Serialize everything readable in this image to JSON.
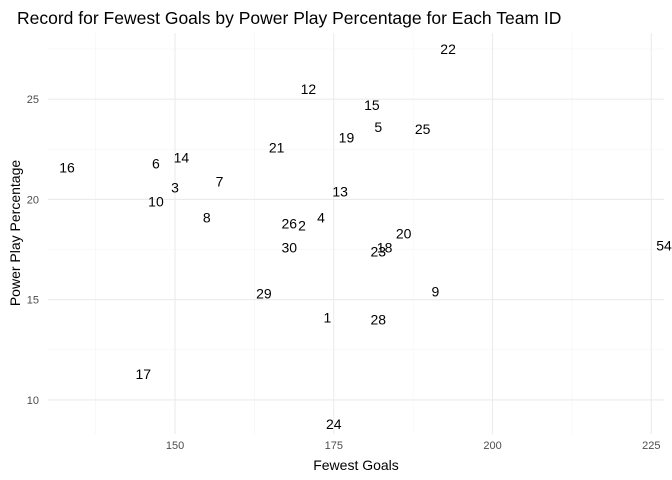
{
  "chart_data": {
    "type": "scatter",
    "title": "Record for Fewest Goals by Power Play Percentage for Each Team ID",
    "xlabel": "Fewest Goals",
    "ylabel": "Power Play Percentage",
    "xlim": [
      130,
      227
    ],
    "ylim": [
      8.3,
      28.3
    ],
    "x_ticks": [
      150,
      175,
      200,
      225
    ],
    "y_ticks": [
      10,
      15,
      20,
      25
    ],
    "x_tick_labels": [
      "150",
      "175",
      "200",
      "225"
    ],
    "y_tick_labels": [
      "10",
      "15",
      "20",
      "25"
    ],
    "grid": true,
    "legend": "none",
    "mark": "text",
    "points": [
      {
        "label": "1",
        "x": 174,
        "y": 14.1
      },
      {
        "label": "2",
        "x": 170,
        "y": 18.7
      },
      {
        "label": "3",
        "x": 150,
        "y": 20.6
      },
      {
        "label": "4",
        "x": 173,
        "y": 19.1
      },
      {
        "label": "5",
        "x": 182,
        "y": 23.6
      },
      {
        "label": "6",
        "x": 147,
        "y": 21.8
      },
      {
        "label": "7",
        "x": 157,
        "y": 20.9
      },
      {
        "label": "8",
        "x": 155,
        "y": 19.1
      },
      {
        "label": "9",
        "x": 191,
        "y": 15.4
      },
      {
        "label": "10",
        "x": 147,
        "y": 19.9
      },
      {
        "label": "12",
        "x": 171,
        "y": 25.5
      },
      {
        "label": "13",
        "x": 176,
        "y": 20.4
      },
      {
        "label": "14",
        "x": 151,
        "y": 22.1
      },
      {
        "label": "15",
        "x": 181,
        "y": 24.7
      },
      {
        "label": "16",
        "x": 133,
        "y": 21.6
      },
      {
        "label": "17",
        "x": 145,
        "y": 11.3
      },
      {
        "label": "18",
        "x": 183,
        "y": 17.6
      },
      {
        "label": "19",
        "x": 177,
        "y": 23.1
      },
      {
        "label": "20",
        "x": 186,
        "y": 18.3
      },
      {
        "label": "21",
        "x": 166,
        "y": 22.6
      },
      {
        "label": "22",
        "x": 193,
        "y": 27.5
      },
      {
        "label": "23",
        "x": 182,
        "y": 17.4
      },
      {
        "label": "24",
        "x": 175,
        "y": 8.8
      },
      {
        "label": "25",
        "x": 189,
        "y": 23.5
      },
      {
        "label": "26",
        "x": 168,
        "y": 18.8
      },
      {
        "label": "28",
        "x": 182,
        "y": 14.0
      },
      {
        "label": "29",
        "x": 164,
        "y": 15.3
      },
      {
        "label": "30",
        "x": 168,
        "y": 17.6
      },
      {
        "label": "54",
        "x": 227,
        "y": 17.7
      }
    ]
  }
}
